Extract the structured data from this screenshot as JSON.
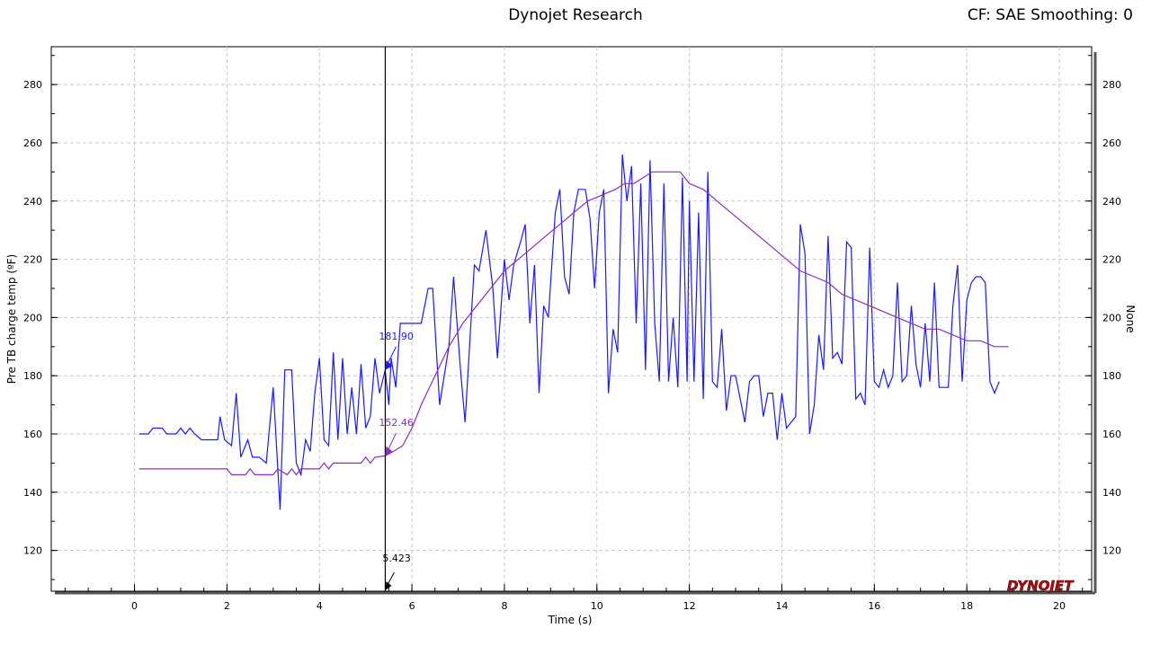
{
  "header": {
    "title": "Dynojet Research",
    "cf_info": "CF: SAE Smoothing: 0"
  },
  "logo": {
    "text": "DYNOJET",
    "color_primary": "#cc0000",
    "color_secondary": "#222222"
  },
  "cursor": {
    "x_label": "5.423",
    "series1_label": "181.90",
    "series2_label": "152.46"
  },
  "chart_data": {
    "type": "line",
    "title": "Dynojet Research",
    "xlabel": "Time (s)",
    "ylabel": "Pre TB charge temp (ºF)",
    "ylabel_right": "None",
    "xlim": [
      -1.8,
      20.7
    ],
    "ylim": [
      106,
      293
    ],
    "x_ticks": [
      "0",
      "2",
      "4",
      "6",
      "8",
      "10",
      "12",
      "14",
      "16",
      "18",
      "20"
    ],
    "y_ticks": [
      "120",
      "140",
      "160",
      "180",
      "200",
      "220",
      "240",
      "260",
      "280"
    ],
    "grid": true,
    "series": [
      {
        "color": "#1a1aff",
        "points": [
          [
            0.1,
            160
          ],
          [
            0.3,
            160
          ],
          [
            0.4,
            162
          ],
          [
            0.6,
            162
          ],
          [
            0.7,
            160
          ],
          [
            0.9,
            160
          ],
          [
            1.0,
            162
          ],
          [
            1.1,
            160
          ],
          [
            1.2,
            162
          ],
          [
            1.3,
            160
          ],
          [
            1.45,
            158
          ],
          [
            1.6,
            158
          ],
          [
            1.8,
            158
          ],
          [
            1.85,
            166
          ],
          [
            1.95,
            158
          ],
          [
            2.1,
            156
          ],
          [
            2.2,
            174
          ],
          [
            2.3,
            152
          ],
          [
            2.45,
            158
          ],
          [
            2.55,
            152
          ],
          [
            2.7,
            152
          ],
          [
            2.85,
            150
          ],
          [
            3.0,
            176
          ],
          [
            3.15,
            134
          ],
          [
            3.25,
            182
          ],
          [
            3.4,
            182
          ],
          [
            3.5,
            150
          ],
          [
            3.6,
            146
          ],
          [
            3.7,
            158
          ],
          [
            3.8,
            154
          ],
          [
            3.9,
            174
          ],
          [
            4.0,
            186
          ],
          [
            4.1,
            158
          ],
          [
            4.2,
            156
          ],
          [
            4.3,
            188
          ],
          [
            4.4,
            158
          ],
          [
            4.5,
            186
          ],
          [
            4.6,
            160
          ],
          [
            4.7,
            176
          ],
          [
            4.8,
            160
          ],
          [
            4.9,
            184
          ],
          [
            5.0,
            162
          ],
          [
            5.1,
            166
          ],
          [
            5.2,
            186
          ],
          [
            5.3,
            174
          ],
          [
            5.42,
            181.9
          ],
          [
            5.5,
            170
          ],
          [
            5.55,
            186
          ],
          [
            5.65,
            176
          ],
          [
            5.75,
            198
          ],
          [
            6.2,
            198
          ],
          [
            6.35,
            210
          ],
          [
            6.45,
            210
          ],
          [
            6.6,
            170
          ],
          [
            6.8,
            190
          ],
          [
            6.9,
            214
          ],
          [
            7.05,
            182
          ],
          [
            7.15,
            164
          ],
          [
            7.35,
            218
          ],
          [
            7.45,
            216
          ],
          [
            7.6,
            230
          ],
          [
            7.75,
            210
          ],
          [
            7.85,
            186
          ],
          [
            8.0,
            220
          ],
          [
            8.1,
            206
          ],
          [
            8.2,
            218
          ],
          [
            8.35,
            226
          ],
          [
            8.45,
            232
          ],
          [
            8.55,
            198
          ],
          [
            8.65,
            218
          ],
          [
            8.75,
            174
          ],
          [
            8.85,
            204
          ],
          [
            8.95,
            200
          ],
          [
            9.1,
            236
          ],
          [
            9.2,
            244
          ],
          [
            9.3,
            214
          ],
          [
            9.4,
            208
          ],
          [
            9.5,
            236
          ],
          [
            9.6,
            244
          ],
          [
            9.75,
            244
          ],
          [
            9.85,
            234
          ],
          [
            9.95,
            210
          ],
          [
            10.05,
            236
          ],
          [
            10.15,
            244
          ],
          [
            10.25,
            174
          ],
          [
            10.35,
            196
          ],
          [
            10.45,
            188
          ],
          [
            10.55,
            256
          ],
          [
            10.65,
            240
          ],
          [
            10.75,
            252
          ],
          [
            10.85,
            198
          ],
          [
            10.95,
            246
          ],
          [
            11.05,
            182
          ],
          [
            11.15,
            254
          ],
          [
            11.25,
            198
          ],
          [
            11.35,
            178
          ],
          [
            11.45,
            246
          ],
          [
            11.55,
            178
          ],
          [
            11.65,
            200
          ],
          [
            11.75,
            176
          ],
          [
            11.85,
            248
          ],
          [
            11.95,
            178
          ],
          [
            12.0,
            240
          ],
          [
            12.1,
            178
          ],
          [
            12.2,
            236
          ],
          [
            12.3,
            172
          ],
          [
            12.4,
            250
          ],
          [
            12.5,
            178
          ],
          [
            12.6,
            176
          ],
          [
            12.7,
            196
          ],
          [
            12.8,
            168
          ],
          [
            12.9,
            180
          ],
          [
            13.0,
            180
          ],
          [
            13.1,
            172
          ],
          [
            13.2,
            164
          ],
          [
            13.3,
            178
          ],
          [
            13.4,
            180
          ],
          [
            13.5,
            180
          ],
          [
            13.6,
            166
          ],
          [
            13.7,
            174
          ],
          [
            13.8,
            174
          ],
          [
            13.9,
            158
          ],
          [
            14.0,
            174
          ],
          [
            14.1,
            162
          ],
          [
            14.2,
            164
          ],
          [
            14.3,
            166
          ],
          [
            14.4,
            232
          ],
          [
            14.5,
            222
          ],
          [
            14.6,
            160
          ],
          [
            14.7,
            170
          ],
          [
            14.8,
            194
          ],
          [
            14.9,
            182
          ],
          [
            15.0,
            228
          ],
          [
            15.1,
            186
          ],
          [
            15.2,
            188
          ],
          [
            15.3,
            184
          ],
          [
            15.4,
            226
          ],
          [
            15.5,
            224
          ],
          [
            15.6,
            172
          ],
          [
            15.7,
            174
          ],
          [
            15.8,
            170
          ],
          [
            15.9,
            224
          ],
          [
            16.0,
            178
          ],
          [
            16.1,
            176
          ],
          [
            16.2,
            182
          ],
          [
            16.3,
            176
          ],
          [
            16.4,
            180
          ],
          [
            16.5,
            212
          ],
          [
            16.6,
            178
          ],
          [
            16.7,
            180
          ],
          [
            16.8,
            204
          ],
          [
            16.9,
            184
          ],
          [
            17.0,
            176
          ],
          [
            17.1,
            198
          ],
          [
            17.2,
            178
          ],
          [
            17.3,
            212
          ],
          [
            17.4,
            176
          ],
          [
            17.5,
            176
          ],
          [
            17.6,
            176
          ],
          [
            17.7,
            204
          ],
          [
            17.8,
            218
          ],
          [
            17.9,
            178
          ],
          [
            18.0,
            206
          ],
          [
            18.1,
            212
          ],
          [
            18.2,
            214
          ],
          [
            18.3,
            214
          ],
          [
            18.4,
            212
          ],
          [
            18.5,
            178
          ],
          [
            18.6,
            174
          ],
          [
            18.7,
            178
          ]
        ]
      },
      {
        "color": "#8a2fbf",
        "points": [
          [
            0.1,
            148
          ],
          [
            2.0,
            148
          ],
          [
            2.1,
            146
          ],
          [
            2.4,
            146
          ],
          [
            2.5,
            148
          ],
          [
            2.6,
            146
          ],
          [
            3.0,
            146
          ],
          [
            3.1,
            148
          ],
          [
            3.3,
            146
          ],
          [
            3.4,
            148
          ],
          [
            3.5,
            146
          ],
          [
            3.6,
            148
          ],
          [
            4.0,
            148
          ],
          [
            4.1,
            150
          ],
          [
            4.2,
            148
          ],
          [
            4.3,
            150
          ],
          [
            4.5,
            150
          ],
          [
            4.9,
            150
          ],
          [
            5.0,
            152
          ],
          [
            5.1,
            150
          ],
          [
            5.2,
            152
          ],
          [
            5.42,
            152.46
          ],
          [
            5.6,
            154
          ],
          [
            5.8,
            156
          ],
          [
            6.0,
            162
          ],
          [
            6.2,
            170
          ],
          [
            6.5,
            180
          ],
          [
            6.8,
            190
          ],
          [
            7.1,
            198
          ],
          [
            7.4,
            204
          ],
          [
            7.7,
            210
          ],
          [
            8.0,
            216
          ],
          [
            8.3,
            220
          ],
          [
            8.6,
            224
          ],
          [
            8.9,
            228
          ],
          [
            9.2,
            232
          ],
          [
            9.5,
            236
          ],
          [
            9.8,
            240
          ],
          [
            10.1,
            242
          ],
          [
            10.4,
            244
          ],
          [
            10.6,
            246
          ],
          [
            10.8,
            246
          ],
          [
            11.2,
            250
          ],
          [
            11.8,
            250
          ],
          [
            12.0,
            246
          ],
          [
            12.3,
            244
          ],
          [
            12.6,
            240
          ],
          [
            12.9,
            236
          ],
          [
            13.2,
            232
          ],
          [
            13.5,
            228
          ],
          [
            13.8,
            224
          ],
          [
            14.1,
            220
          ],
          [
            14.4,
            216
          ],
          [
            14.7,
            214
          ],
          [
            15.0,
            212
          ],
          [
            15.3,
            208
          ],
          [
            15.6,
            206
          ],
          [
            15.9,
            204
          ],
          [
            16.2,
            202
          ],
          [
            16.5,
            200
          ],
          [
            16.8,
            198
          ],
          [
            17.1,
            196
          ],
          [
            17.4,
            196
          ],
          [
            17.7,
            194
          ],
          [
            18.0,
            192
          ],
          [
            18.3,
            192
          ],
          [
            18.6,
            190
          ],
          [
            18.9,
            190
          ]
        ]
      }
    ]
  }
}
